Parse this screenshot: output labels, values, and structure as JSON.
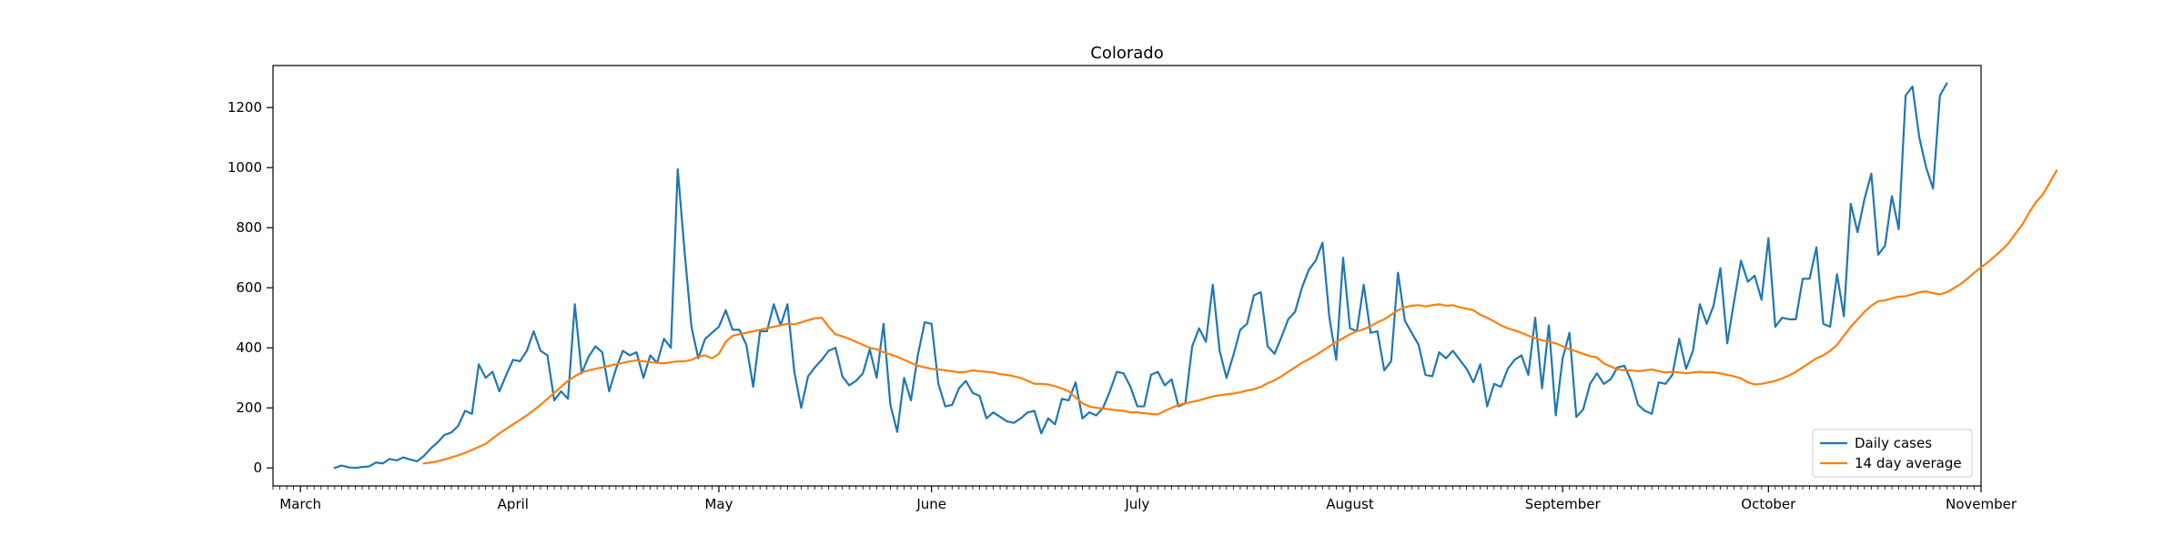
{
  "chart_data": {
    "type": "line",
    "title": "Colorado",
    "xlabel": "",
    "ylabel": "",
    "x_range": [
      "2020-02-26",
      "2020-11-01"
    ],
    "ylim": [
      -60,
      1340
    ],
    "y_ticks": [
      0,
      200,
      400,
      600,
      800,
      1000,
      1200
    ],
    "x_ticks": [
      {
        "date": "2020-03-01",
        "label": "March"
      },
      {
        "date": "2020-04-01",
        "label": "April"
      },
      {
        "date": "2020-05-01",
        "label": "May"
      },
      {
        "date": "2020-06-01",
        "label": "June"
      },
      {
        "date": "2020-07-01",
        "label": "July"
      },
      {
        "date": "2020-08-01",
        "label": "August"
      },
      {
        "date": "2020-09-01",
        "label": "September"
      },
      {
        "date": "2020-10-01",
        "label": "October"
      },
      {
        "date": "2020-11-01",
        "label": "November"
      }
    ],
    "grid": false,
    "legend": "lower-right",
    "series": [
      {
        "name": "Daily cases",
        "color": "#1f77b4",
        "start_date": "2020-03-06",
        "values": [
          0,
          8,
          2,
          0,
          3,
          5,
          18,
          15,
          30,
          25,
          35,
          28,
          22,
          40,
          65,
          85,
          110,
          118,
          140,
          190,
          180,
          345,
          300,
          320,
          255,
          310,
          360,
          355,
          390,
          455,
          390,
          375,
          225,
          255,
          230,
          545,
          315,
          370,
          405,
          385,
          255,
          330,
          390,
          375,
          385,
          300,
          375,
          350,
          430,
          400,
          995,
          720,
          470,
          365,
          430,
          450,
          470,
          525,
          460,
          460,
          410,
          270,
          455,
          455,
          545,
          475,
          545,
          320,
          200,
          305,
          335,
          360,
          390,
          400,
          305,
          275,
          290,
          315,
          395,
          300,
          480,
          210,
          120,
          300,
          225,
          375,
          485,
          480,
          280,
          205,
          210,
          265,
          290,
          250,
          240,
          165,
          185,
          170,
          155,
          150,
          165,
          185,
          190,
          115,
          165,
          145,
          230,
          225,
          285,
          165,
          185,
          175,
          200,
          255,
          320,
          315,
          270,
          205,
          205,
          310,
          320,
          275,
          295,
          205,
          215,
          405,
          465,
          420,
          610,
          390,
          300,
          375,
          460,
          480,
          575,
          585,
          405,
          380,
          435,
          495,
          520,
          600,
          660,
          690,
          750,
          500,
          360,
          700,
          465,
          455,
          610,
          450,
          455,
          325,
          355,
          650,
          490,
          450,
          410,
          310,
          305,
          385,
          365,
          390,
          360,
          330,
          285,
          345,
          205,
          280,
          270,
          330,
          360,
          375,
          310,
          500,
          265,
          475,
          175,
          365,
          450,
          170,
          195,
          280,
          315,
          280,
          295,
          335,
          340,
          290,
          210,
          190,
          180,
          285,
          280,
          310,
          430,
          330,
          390,
          545,
          480,
          540,
          665,
          415,
          555,
          690,
          620,
          640,
          560,
          765,
          470,
          500,
          495,
          495,
          630,
          630,
          735,
          480,
          470,
          645,
          505,
          880,
          785,
          895,
          980,
          710,
          740,
          905,
          795,
          1240,
          1270,
          1100,
          1000,
          930,
          1240,
          1280
        ]
      },
      {
        "name": "14 day average",
        "color": "#ff7f0e",
        "start_date": "2020-03-19",
        "values": [
          15,
          18,
          22,
          28,
          35,
          42,
          50,
          60,
          70,
          80,
          98,
          115,
          130,
          145,
          160,
          175,
          192,
          210,
          230,
          250,
          270,
          290,
          305,
          318,
          325,
          330,
          335,
          340,
          345,
          350,
          355,
          358,
          355,
          352,
          350,
          348,
          352,
          355,
          355,
          360,
          370,
          375,
          365,
          380,
          420,
          440,
          445,
          450,
          455,
          460,
          465,
          470,
          475,
          480,
          478,
          485,
          492,
          498,
          500,
          470,
          445,
          438,
          430,
          420,
          410,
          400,
          395,
          385,
          378,
          370,
          360,
          350,
          340,
          335,
          330,
          328,
          325,
          322,
          318,
          320,
          325,
          322,
          320,
          318,
          312,
          310,
          305,
          300,
          290,
          280,
          280,
          278,
          272,
          265,
          255,
          235,
          215,
          205,
          200,
          198,
          195,
          192,
          190,
          185,
          185,
          182,
          180,
          178,
          190,
          200,
          210,
          215,
          220,
          225,
          232,
          238,
          242,
          245,
          248,
          252,
          258,
          262,
          270,
          282,
          292,
          305,
          320,
          335,
          350,
          362,
          375,
          390,
          405,
          420,
          432,
          445,
          455,
          462,
          472,
          485,
          495,
          510,
          525,
          535,
          540,
          542,
          538,
          542,
          545,
          540,
          542,
          535,
          530,
          525,
          510,
          500,
          488,
          475,
          465,
          458,
          450,
          440,
          432,
          425,
          420,
          415,
          405,
          395,
          388,
          380,
          372,
          368,
          348,
          338,
          328,
          325,
          325,
          322,
          325,
          328,
          322,
          318,
          320,
          318,
          315,
          318,
          320,
          318,
          318,
          315,
          310,
          305,
          298,
          285,
          278,
          280,
          285,
          290,
          298,
          308,
          320,
          335,
          350,
          365,
          375,
          390,
          410,
          440,
          470,
          495,
          520,
          540,
          555,
          558,
          565,
          570,
          572,
          578,
          585,
          588,
          582,
          578,
          585,
          598,
          612,
          630,
          650,
          668,
          685,
          705,
          725,
          748,
          780,
          810,
          850,
          885,
          910,
          950,
          990
        ]
      }
    ]
  }
}
